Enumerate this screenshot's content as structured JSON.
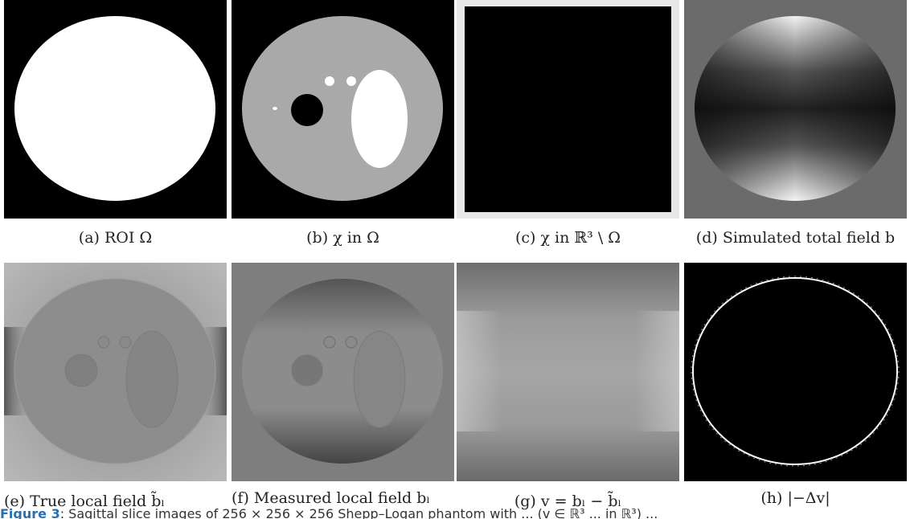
{
  "panels": [
    {
      "id": "a",
      "label": "(a)",
      "caption": "ROI Ω"
    },
    {
      "id": "b",
      "label": "(b)",
      "caption": "χ in Ω"
    },
    {
      "id": "c",
      "label": "(c)",
      "caption": "χ in ℝ³ \\ Ω"
    },
    {
      "id": "d",
      "label": "(d)",
      "caption": "Simulated total field b"
    },
    {
      "id": "e",
      "label": "(e)",
      "caption": "True local field b̃ₗ"
    },
    {
      "id": "f",
      "label": "(f)",
      "caption": "Measured local field bₗ"
    },
    {
      "id": "g",
      "label": "(g)",
      "caption": "v = bₗ − b̃ₗ"
    },
    {
      "id": "h",
      "label": "(h)",
      "caption": "|−Δv|"
    }
  ],
  "figure_caption": {
    "label": "Figure 3",
    "text": ": Sagittal slice images of 256 × 256 × 256 Shepp–Logan phantom with ... (v ∈ ℝ³ ... in ℝ³) ..."
  }
}
